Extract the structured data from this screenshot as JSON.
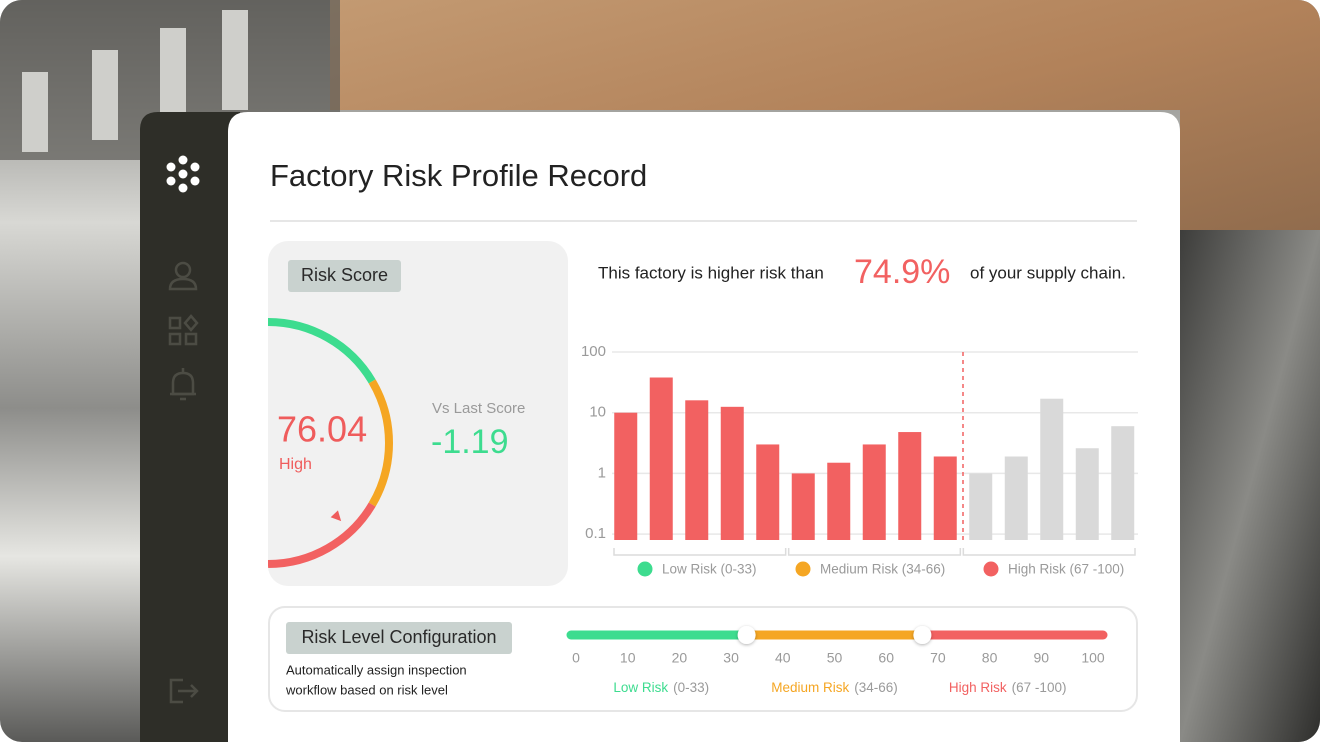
{
  "header": {
    "title": "Factory Risk Profile Record"
  },
  "risk_score": {
    "label": "Risk Score",
    "score": 76.04,
    "level": "High",
    "comparison_label": "Vs Last Score",
    "change": -1.19
  },
  "summary": {
    "prefix": "This factory is higher risk than",
    "highlight": "74.9%",
    "suffix": "of your supply chain."
  },
  "chart_data": {
    "type": "bar",
    "categories": [
      null,
      null,
      null,
      null,
      null,
      null,
      null,
      null,
      null,
      null,
      null,
      null,
      null,
      null,
      null
    ],
    "values": [
      10,
      38,
      16,
      12.5,
      3,
      1,
      1.5,
      3,
      4.8,
      1.9,
      1,
      1.9,
      17,
      2.6,
      6
    ],
    "colors": [
      "#f26161",
      "#f26161",
      "#f26161",
      "#f26161",
      "#f26161",
      "#f26161",
      "#f26161",
      "#f26161",
      "#f26161",
      "#f26161",
      "#d9d9d9",
      "#d9d9d9",
      "#d9d9d9",
      "#d9d9d9",
      "#d9d9d9"
    ],
    "ylim": [
      0.08,
      100
    ],
    "yticks": [
      0.1,
      1,
      10,
      100
    ],
    "log_scale": true,
    "grid": true,
    "legend": [
      {
        "label": "Low Risk (0-33)",
        "color": "#3ddc8f"
      },
      {
        "label": "Medium Risk (34-66)",
        "color": "#f5a623"
      },
      {
        "label": "High Risk (67 -100)",
        "color": "#f26161"
      }
    ]
  },
  "configuration": {
    "title": "Risk Level Configuration",
    "description": [
      "Automatically assign inspection",
      "workflow based on risk level"
    ],
    "xlim": [
      0,
      100
    ],
    "ticks": [
      0,
      10,
      20,
      30,
      40,
      50,
      60,
      70,
      80,
      90,
      100
    ],
    "thresholds": [
      33,
      67
    ],
    "levels": [
      {
        "name": "Low Risk",
        "range": "(0-33)",
        "color": "#3ddc8f"
      },
      {
        "name": "Medium Risk",
        "range": "(34-66)",
        "color": "#f5a623"
      },
      {
        "name": "High Risk",
        "range": "(67 -100)",
        "color": "#f26161"
      }
    ]
  }
}
